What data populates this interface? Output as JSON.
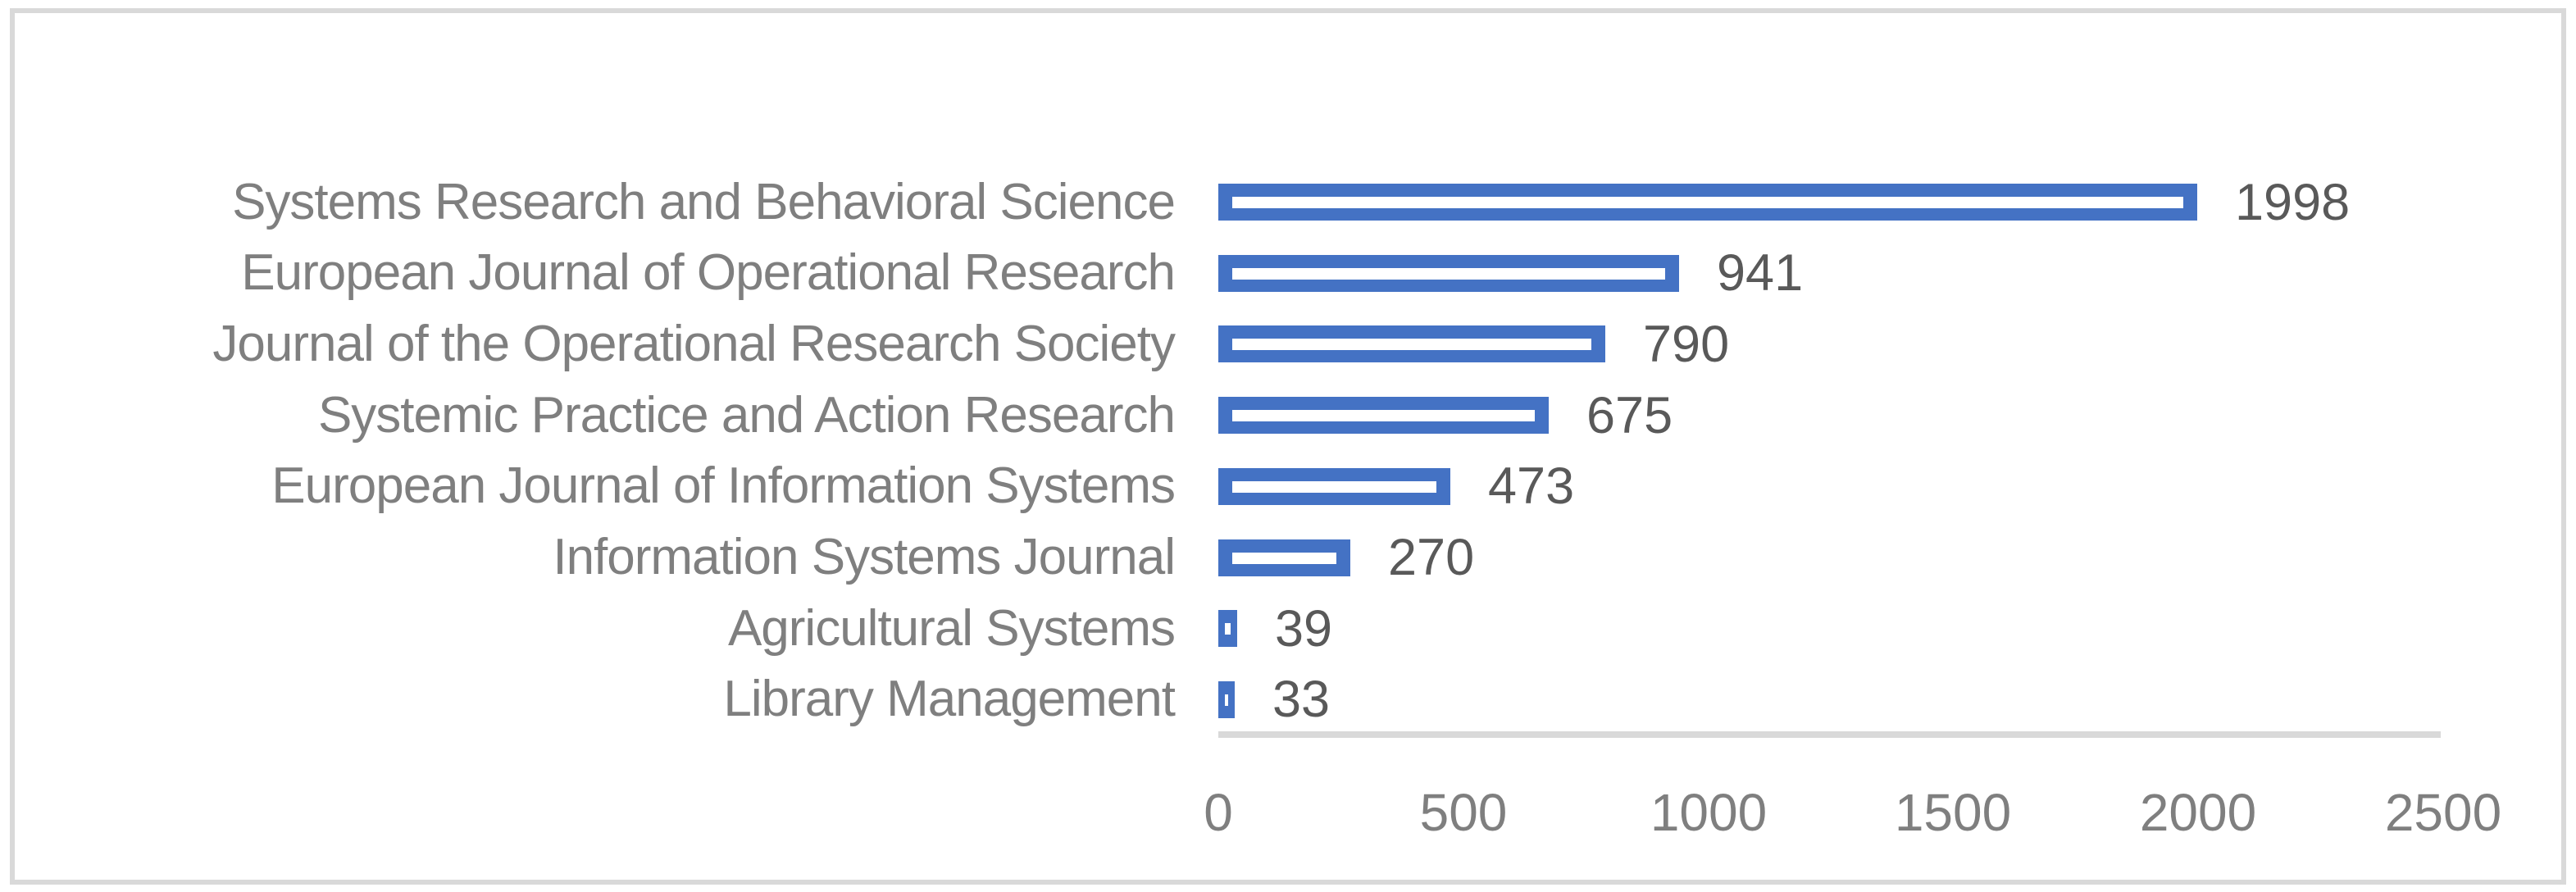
{
  "chart_data": {
    "type": "bar",
    "orientation": "horizontal",
    "categories": [
      "Systems Research and Behavioral Science",
      "European Journal of Operational Research",
      "Journal of the Operational Research Society",
      "Systemic Practice and Action Research",
      "European Journal of Information Systems",
      "Information Systems Journal",
      "Agricultural Systems",
      "Library Management"
    ],
    "values": [
      1998,
      941,
      790,
      675,
      473,
      270,
      39,
      33
    ],
    "value_labels": [
      "1998",
      "941",
      "790",
      "675",
      "473",
      "270",
      "39",
      "33"
    ],
    "xlim": [
      0,
      2500
    ],
    "x_ticks": [
      0,
      500,
      1000,
      1500,
      2000,
      2500
    ],
    "x_tick_labels": [
      "0",
      "500",
      "1000",
      "1500",
      "2000",
      "2500"
    ],
    "grid": false,
    "legend": false,
    "colors": {
      "bar_fill": "#4472c4",
      "bar_stripe": "#ffffff",
      "axis_line": "#d9d9d9",
      "frame_border": "#d9d9d9",
      "category_label_text": "#7f7f7f",
      "tick_label_text": "#7f7f7f",
      "value_label_text": "#595959",
      "background": "#ffffff"
    }
  }
}
